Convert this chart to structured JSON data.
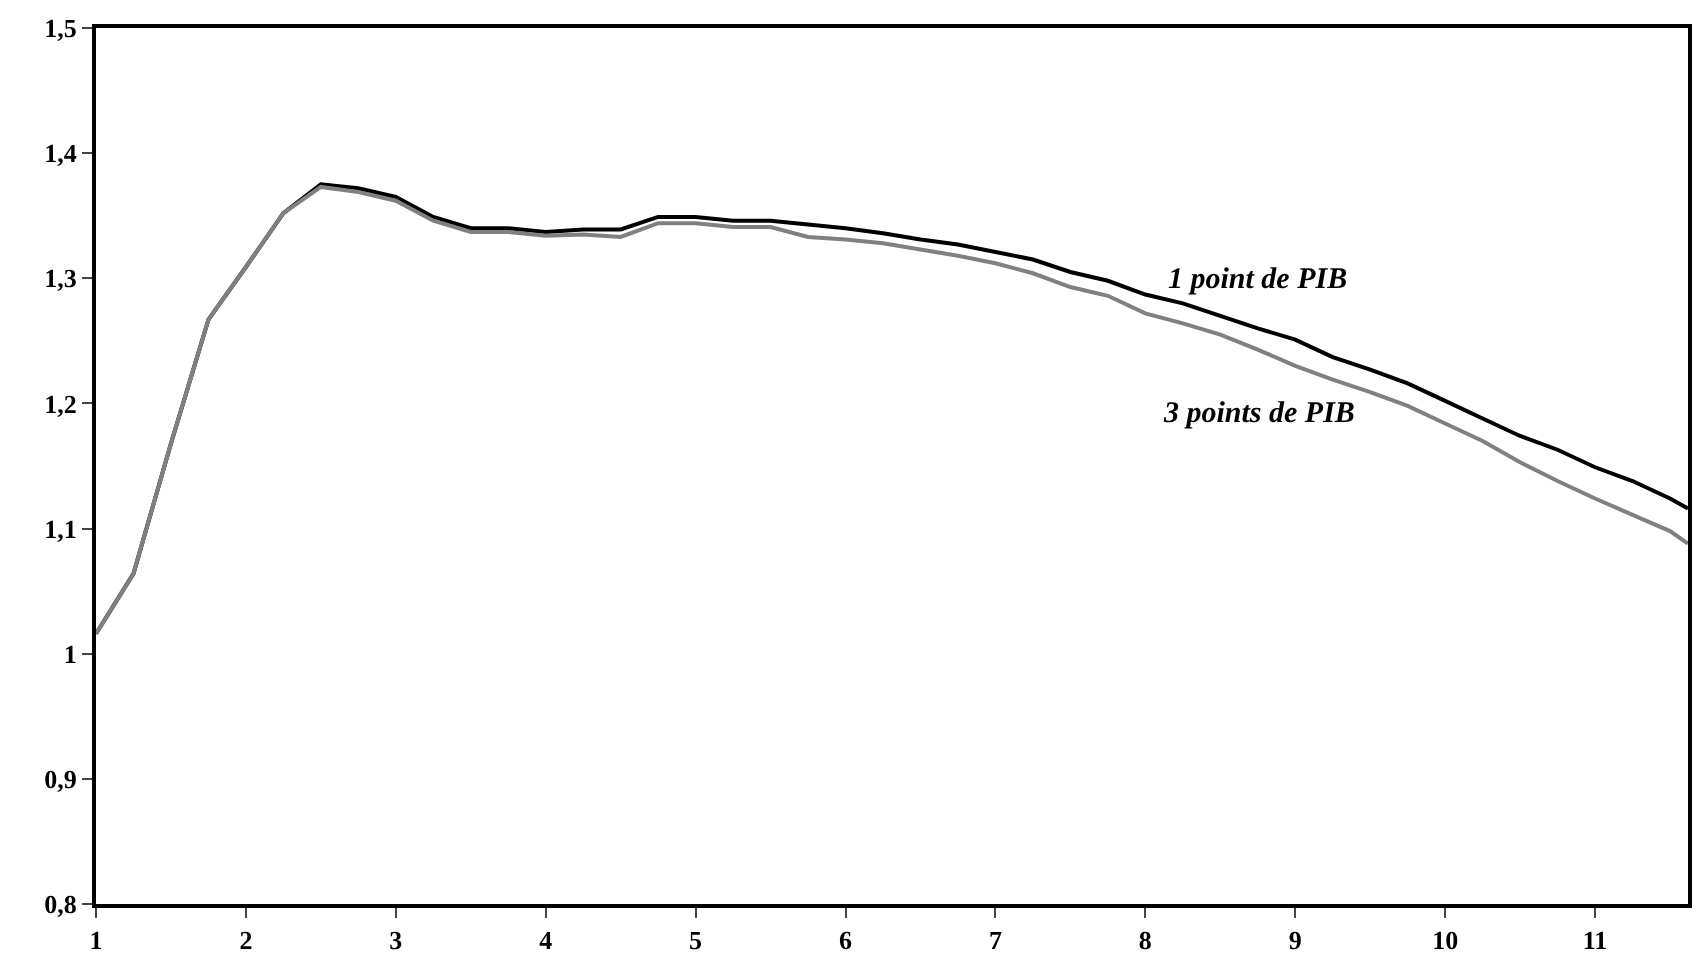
{
  "chart_data": {
    "type": "line",
    "x": [
      1,
      1.25,
      1.5,
      1.75,
      2,
      2.25,
      2.5,
      2.75,
      3,
      3.25,
      3.5,
      3.75,
      4,
      4.25,
      4.5,
      4.75,
      5,
      5.25,
      5.5,
      5.75,
      6,
      6.25,
      6.5,
      6.75,
      7,
      7.25,
      7.5,
      7.75,
      8,
      8.25,
      8.5,
      8.75,
      9,
      9.25,
      9.5,
      9.75,
      10,
      10.25,
      10.5,
      10.75,
      11,
      11.25,
      11.5,
      11.62
    ],
    "series": [
      {
        "name": "1 point de PIB",
        "color": "#000000",
        "values": [
          1.016,
          1.064,
          1.168,
          1.267,
          1.309,
          1.352,
          1.375,
          1.372,
          1.365,
          1.349,
          1.34,
          1.34,
          1.337,
          1.339,
          1.339,
          1.349,
          1.349,
          1.346,
          1.346,
          1.343,
          1.34,
          1.336,
          1.331,
          1.327,
          1.321,
          1.315,
          1.305,
          1.298,
          1.287,
          1.28,
          1.27,
          1.26,
          1.251,
          1.237,
          1.227,
          1.216,
          1.202,
          1.188,
          1.174,
          1.163,
          1.149,
          1.138,
          1.124,
          1.116
        ]
      },
      {
        "name": "3 points de PIB",
        "color": "#808080",
        "values": [
          1.016,
          1.064,
          1.168,
          1.267,
          1.309,
          1.352,
          1.373,
          1.369,
          1.362,
          1.346,
          1.337,
          1.337,
          1.334,
          1.335,
          1.333,
          1.344,
          1.344,
          1.341,
          1.341,
          1.333,
          1.331,
          1.328,
          1.323,
          1.318,
          1.312,
          1.304,
          1.293,
          1.286,
          1.272,
          1.264,
          1.255,
          1.243,
          1.23,
          1.219,
          1.209,
          1.198,
          1.184,
          1.17,
          1.153,
          1.138,
          1.124,
          1.111,
          1.098,
          1.088
        ]
      }
    ],
    "xlim": [
      1,
      11.62
    ],
    "xticks": [
      1,
      2,
      3,
      4,
      5,
      6,
      7,
      8,
      9,
      10,
      11
    ],
    "ylim": [
      0.8,
      1.5
    ],
    "yticks": [
      {
        "value": 0.8,
        "label": "0,8"
      },
      {
        "value": 0.9,
        "label": "0,9"
      },
      {
        "value": 1,
        "label": "1"
      },
      {
        "value": 1.1,
        "label": "1,1"
      },
      {
        "value": 1.2,
        "label": "1,2"
      },
      {
        "value": 1.3,
        "label": "1,3"
      },
      {
        "value": 1.4,
        "label": "1,4"
      },
      {
        "value": 1.5,
        "label": "1,5"
      }
    ],
    "legend": false,
    "marker": "none",
    "line_style": "solid"
  }
}
